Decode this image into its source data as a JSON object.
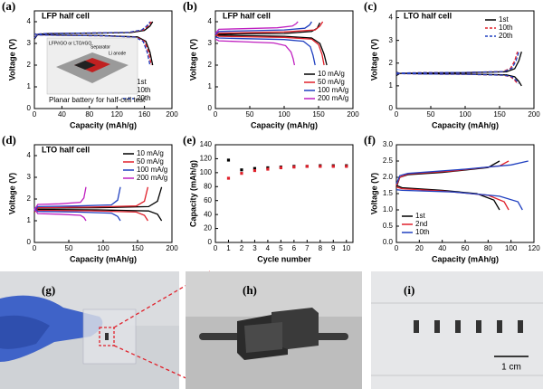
{
  "chart_data": [
    {
      "type": "line",
      "label": "(a)",
      "title": "LFP half cell",
      "x_label": "Capacity (mAh/g)",
      "y_label": "Voltage (V)",
      "xlim": [
        0,
        200
      ],
      "xticks": [
        0,
        40,
        80,
        120,
        160,
        200
      ],
      "ylim": [
        0,
        4.5
      ],
      "yticks": [
        0,
        1,
        2,
        3,
        4
      ],
      "legend": "lower right",
      "annotations": [
        "LFP/rGO or LTO/rGO",
        "Separator",
        "Li anode",
        "Planar battery for half-cell test"
      ],
      "series": [
        {
          "name": "1st",
          "color": "#000000",
          "style": "solid",
          "x": [
            0,
            5,
            20,
            80,
            140,
            160,
            168,
            172,
            null,
            0,
            5,
            40,
            100,
            150,
            162,
            168,
            172
          ],
          "values": [
            3.2,
            3.42,
            3.45,
            3.47,
            3.5,
            3.6,
            3.8,
            4.0,
            null,
            3.45,
            3.4,
            3.38,
            3.36,
            3.3,
            3.1,
            2.6,
            2.0
          ]
        },
        {
          "name": "10th",
          "color": "#e0202a",
          "style": "dashed",
          "x": [
            0,
            5,
            20,
            80,
            138,
            158,
            166,
            170,
            null,
            0,
            5,
            40,
            100,
            148,
            160,
            166,
            170
          ],
          "values": [
            3.25,
            3.43,
            3.46,
            3.48,
            3.51,
            3.62,
            3.82,
            4.0,
            null,
            3.44,
            3.39,
            3.37,
            3.35,
            3.29,
            3.1,
            2.6,
            2.0
          ]
        },
        {
          "name": "20th",
          "color": "#2040c0",
          "style": "dashed",
          "x": [
            0,
            5,
            20,
            80,
            136,
            156,
            164,
            168,
            null,
            0,
            5,
            40,
            100,
            146,
            158,
            164,
            168
          ],
          "values": [
            3.25,
            3.43,
            3.46,
            3.48,
            3.51,
            3.62,
            3.82,
            4.0,
            null,
            3.44,
            3.39,
            3.37,
            3.35,
            3.29,
            3.1,
            2.6,
            2.0
          ]
        }
      ]
    },
    {
      "type": "line",
      "label": "(b)",
      "title": "LFP half cell",
      "x_label": "Capacity (mAh/g)",
      "y_label": "Voltage (V)",
      "xlim": [
        0,
        200
      ],
      "xticks": [
        0,
        50,
        100,
        150,
        200
      ],
      "ylim": [
        0,
        4.5
      ],
      "yticks": [
        0,
        1,
        2,
        3,
        4
      ],
      "legend": "lower right",
      "series": [
        {
          "name": "10 mA/g",
          "color": "#000000",
          "style": "solid",
          "x": [
            0,
            5,
            40,
            100,
            140,
            148,
            152,
            null,
            0,
            5,
            40,
            100,
            140,
            152,
            158,
            162
          ],
          "values": [
            3.3,
            3.42,
            3.44,
            3.46,
            3.55,
            3.7,
            3.95,
            null,
            3.42,
            3.38,
            3.36,
            3.33,
            3.25,
            3.0,
            2.5,
            2.0
          ]
        },
        {
          "name": "50 mA/g",
          "color": "#e0202a",
          "style": "solid",
          "x": [
            0,
            5,
            40,
            100,
            145,
            152,
            156,
            null,
            0,
            5,
            40,
            100,
            140,
            150,
            155,
            158
          ],
          "values": [
            3.35,
            3.47,
            3.5,
            3.53,
            3.62,
            3.8,
            4.0,
            null,
            3.38,
            3.33,
            3.31,
            3.28,
            3.2,
            2.95,
            2.5,
            2.0
          ]
        },
        {
          "name": "100 mA/g",
          "color": "#2040c0",
          "style": "solid",
          "x": [
            0,
            5,
            40,
            100,
            130,
            137,
            140,
            null,
            0,
            5,
            40,
            100,
            128,
            138,
            142,
            145
          ],
          "values": [
            3.4,
            3.55,
            3.58,
            3.62,
            3.7,
            3.85,
            4.0,
            null,
            3.3,
            3.25,
            3.22,
            3.18,
            3.1,
            2.85,
            2.45,
            2.0
          ]
        },
        {
          "name": "200 mA/g",
          "color": "#c020c0",
          "style": "solid",
          "x": [
            0,
            5,
            40,
            90,
            112,
            117,
            120,
            null,
            0,
            5,
            40,
            85,
            102,
            110,
            113,
            115
          ],
          "values": [
            3.45,
            3.65,
            3.68,
            3.72,
            3.8,
            3.9,
            4.0,
            null,
            3.2,
            3.12,
            3.08,
            3.02,
            2.9,
            2.6,
            2.3,
            2.0
          ]
        }
      ]
    },
    {
      "type": "line",
      "label": "(c)",
      "title": "LTO half cell",
      "x_label": "Capacity (mAh/g)",
      "y_label": "Voltage (V)",
      "xlim": [
        0,
        200
      ],
      "xticks": [
        0,
        50,
        100,
        150,
        200
      ],
      "ylim": [
        0,
        4.3
      ],
      "yticks": [
        0,
        1,
        2,
        3,
        4
      ],
      "legend": "upper right",
      "series": [
        {
          "name": "1st",
          "color": "#000000",
          "style": "solid",
          "x": [
            0,
            5,
            40,
            100,
            160,
            172,
            178,
            182,
            null,
            0,
            5,
            40,
            100,
            160,
            172,
            178,
            182
          ],
          "values": [
            1.45,
            1.55,
            1.57,
            1.58,
            1.62,
            1.75,
            2.1,
            2.5,
            null,
            1.6,
            1.55,
            1.53,
            1.52,
            1.48,
            1.4,
            1.2,
            1.0
          ]
        },
        {
          "name": "10th",
          "color": "#e0202a",
          "style": "dashed",
          "x": [
            0,
            5,
            40,
            100,
            155,
            166,
            172,
            176,
            null,
            0,
            5,
            40,
            100,
            155,
            166,
            172,
            176
          ],
          "values": [
            1.5,
            1.56,
            1.58,
            1.59,
            1.63,
            1.77,
            2.1,
            2.5,
            null,
            1.58,
            1.54,
            1.52,
            1.51,
            1.47,
            1.4,
            1.25,
            1.1
          ]
        },
        {
          "name": "20th",
          "color": "#2040c0",
          "style": "dashed",
          "x": [
            0,
            5,
            40,
            100,
            157,
            168,
            174,
            178,
            null,
            0,
            5,
            40,
            100,
            157,
            168,
            174,
            178
          ],
          "values": [
            1.5,
            1.56,
            1.58,
            1.59,
            1.63,
            1.77,
            2.1,
            2.5,
            null,
            1.58,
            1.54,
            1.52,
            1.51,
            1.47,
            1.4,
            1.25,
            1.1
          ]
        }
      ]
    },
    {
      "type": "line",
      "label": "(d)",
      "title": "LTO half cell",
      "x_label": "Capacity (mAh/g)",
      "y_label": "Voltage (V)",
      "xlim": [
        0,
        200
      ],
      "xticks": [
        0,
        50,
        100,
        150,
        200
      ],
      "ylim": [
        0,
        4.5
      ],
      "yticks": [
        0,
        1,
        2,
        3,
        4
      ],
      "legend": "upper right",
      "series": [
        {
          "name": "10 mA/g",
          "color": "#000000",
          "style": "solid",
          "x": [
            0,
            5,
            92,
            166,
            179,
            185,
            null,
            0,
            5,
            92,
            166,
            179,
            185
          ],
          "values": [
            1.4,
            1.58,
            1.6,
            1.65,
            1.9,
            2.55,
            null,
            1.6,
            1.52,
            1.5,
            1.45,
            1.3,
            1.0
          ]
        },
        {
          "name": "50 mA/g",
          "color": "#e0202a",
          "style": "solid",
          "x": [
            0,
            5,
            82,
            148,
            160,
            165,
            null,
            0,
            5,
            82,
            148,
            160,
            165
          ],
          "values": [
            1.4,
            1.6,
            1.63,
            1.68,
            1.9,
            2.55,
            null,
            1.6,
            1.48,
            1.46,
            1.4,
            1.25,
            1.0
          ]
        },
        {
          "name": "100 mA/g",
          "color": "#2040c0",
          "style": "solid",
          "x": [
            0,
            5,
            62,
            112,
            121,
            125,
            null,
            0,
            5,
            62,
            112,
            121,
            125
          ],
          "values": [
            1.45,
            1.65,
            1.68,
            1.73,
            1.95,
            2.55,
            null,
            1.6,
            1.43,
            1.4,
            1.35,
            1.2,
            1.0
          ]
        },
        {
          "name": "200 mA/g",
          "color": "#c020c0",
          "style": "solid",
          "x": [
            0,
            5,
            37,
            67,
            72,
            75,
            null,
            0,
            5,
            37,
            67,
            72,
            75
          ],
          "values": [
            1.5,
            1.75,
            1.78,
            1.85,
            2.05,
            2.55,
            null,
            1.55,
            1.33,
            1.3,
            1.25,
            1.15,
            1.0
          ]
        }
      ]
    },
    {
      "type": "scatter",
      "label": "(e)",
      "x_label": "Cycle number",
      "y_label": "Capacity (mAh/g)",
      "xlim": [
        0,
        10.5
      ],
      "xticks": [
        0,
        1,
        2,
        3,
        4,
        5,
        6,
        7,
        8,
        9,
        10
      ],
      "ylim": [
        0,
        140
      ],
      "yticks": [
        0,
        20,
        40,
        60,
        80,
        100,
        120,
        140
      ],
      "x": [
        1,
        2,
        3,
        4,
        5,
        6,
        7,
        8,
        9,
        10
      ],
      "series": [
        {
          "color": "#000000",
          "values": [
            118,
            104,
            106,
            107,
            108,
            109,
            109,
            110,
            110,
            110
          ]
        },
        {
          "color": "#e0202a",
          "values": [
            92,
            99,
            103,
            105,
            107,
            108,
            109,
            109,
            109,
            109
          ]
        }
      ]
    },
    {
      "type": "line",
      "label": "(f)",
      "x_label": "Capacity (mAh/g)",
      "y_label": "Voltage (V)",
      "xlim": [
        0,
        120
      ],
      "xticks": [
        0,
        20,
        40,
        60,
        80,
        100,
        120
      ],
      "ylim": [
        0,
        3
      ],
      "yticks": [
        {
          "value": 0,
          "label": "0.0"
        },
        {
          "value": 0.5,
          "label": "0.5"
        },
        {
          "value": 1,
          "label": "1.0"
        },
        {
          "value": 1.5,
          "label": "1.5"
        },
        {
          "value": 2,
          "label": "2.0"
        },
        {
          "value": 2.5,
          "label": "2.5"
        },
        {
          "value": 3,
          "label": "3.0"
        }
      ],
      "legend": "lower left",
      "series": [
        {
          "name": "1st",
          "color": "#000000",
          "style": "solid",
          "x": [
            0,
            3,
            10,
            40,
            80,
            90,
            null,
            0,
            5,
            40,
            70,
            85,
            90
          ],
          "values": [
            1.7,
            2.0,
            2.08,
            2.15,
            2.3,
            2.5,
            null,
            1.75,
            1.68,
            1.6,
            1.5,
            1.3,
            1.0
          ]
        },
        {
          "name": "2nd",
          "color": "#e0202a",
          "style": "solid",
          "x": [
            0,
            3,
            10,
            50,
            90,
            98,
            null,
            0,
            5,
            40,
            80,
            94,
            98
          ],
          "values": [
            1.75,
            2.0,
            2.1,
            2.2,
            2.35,
            2.5,
            null,
            1.7,
            1.65,
            1.58,
            1.45,
            1.25,
            1.0
          ]
        },
        {
          "name": "10th",
          "color": "#2040c0",
          "style": "solid",
          "x": [
            0,
            3,
            10,
            60,
            100,
            115,
            null,
            0,
            5,
            50,
            90,
            106,
            110
          ],
          "values": [
            1.8,
            2.05,
            2.12,
            2.25,
            2.38,
            2.5,
            null,
            1.62,
            1.6,
            1.55,
            1.42,
            1.25,
            1.0
          ]
        }
      ]
    }
  ],
  "photos": [
    {
      "label": "(g)"
    },
    {
      "label": "(h)"
    },
    {
      "label": "(i)"
    }
  ],
  "scale_bar": "1 cm"
}
